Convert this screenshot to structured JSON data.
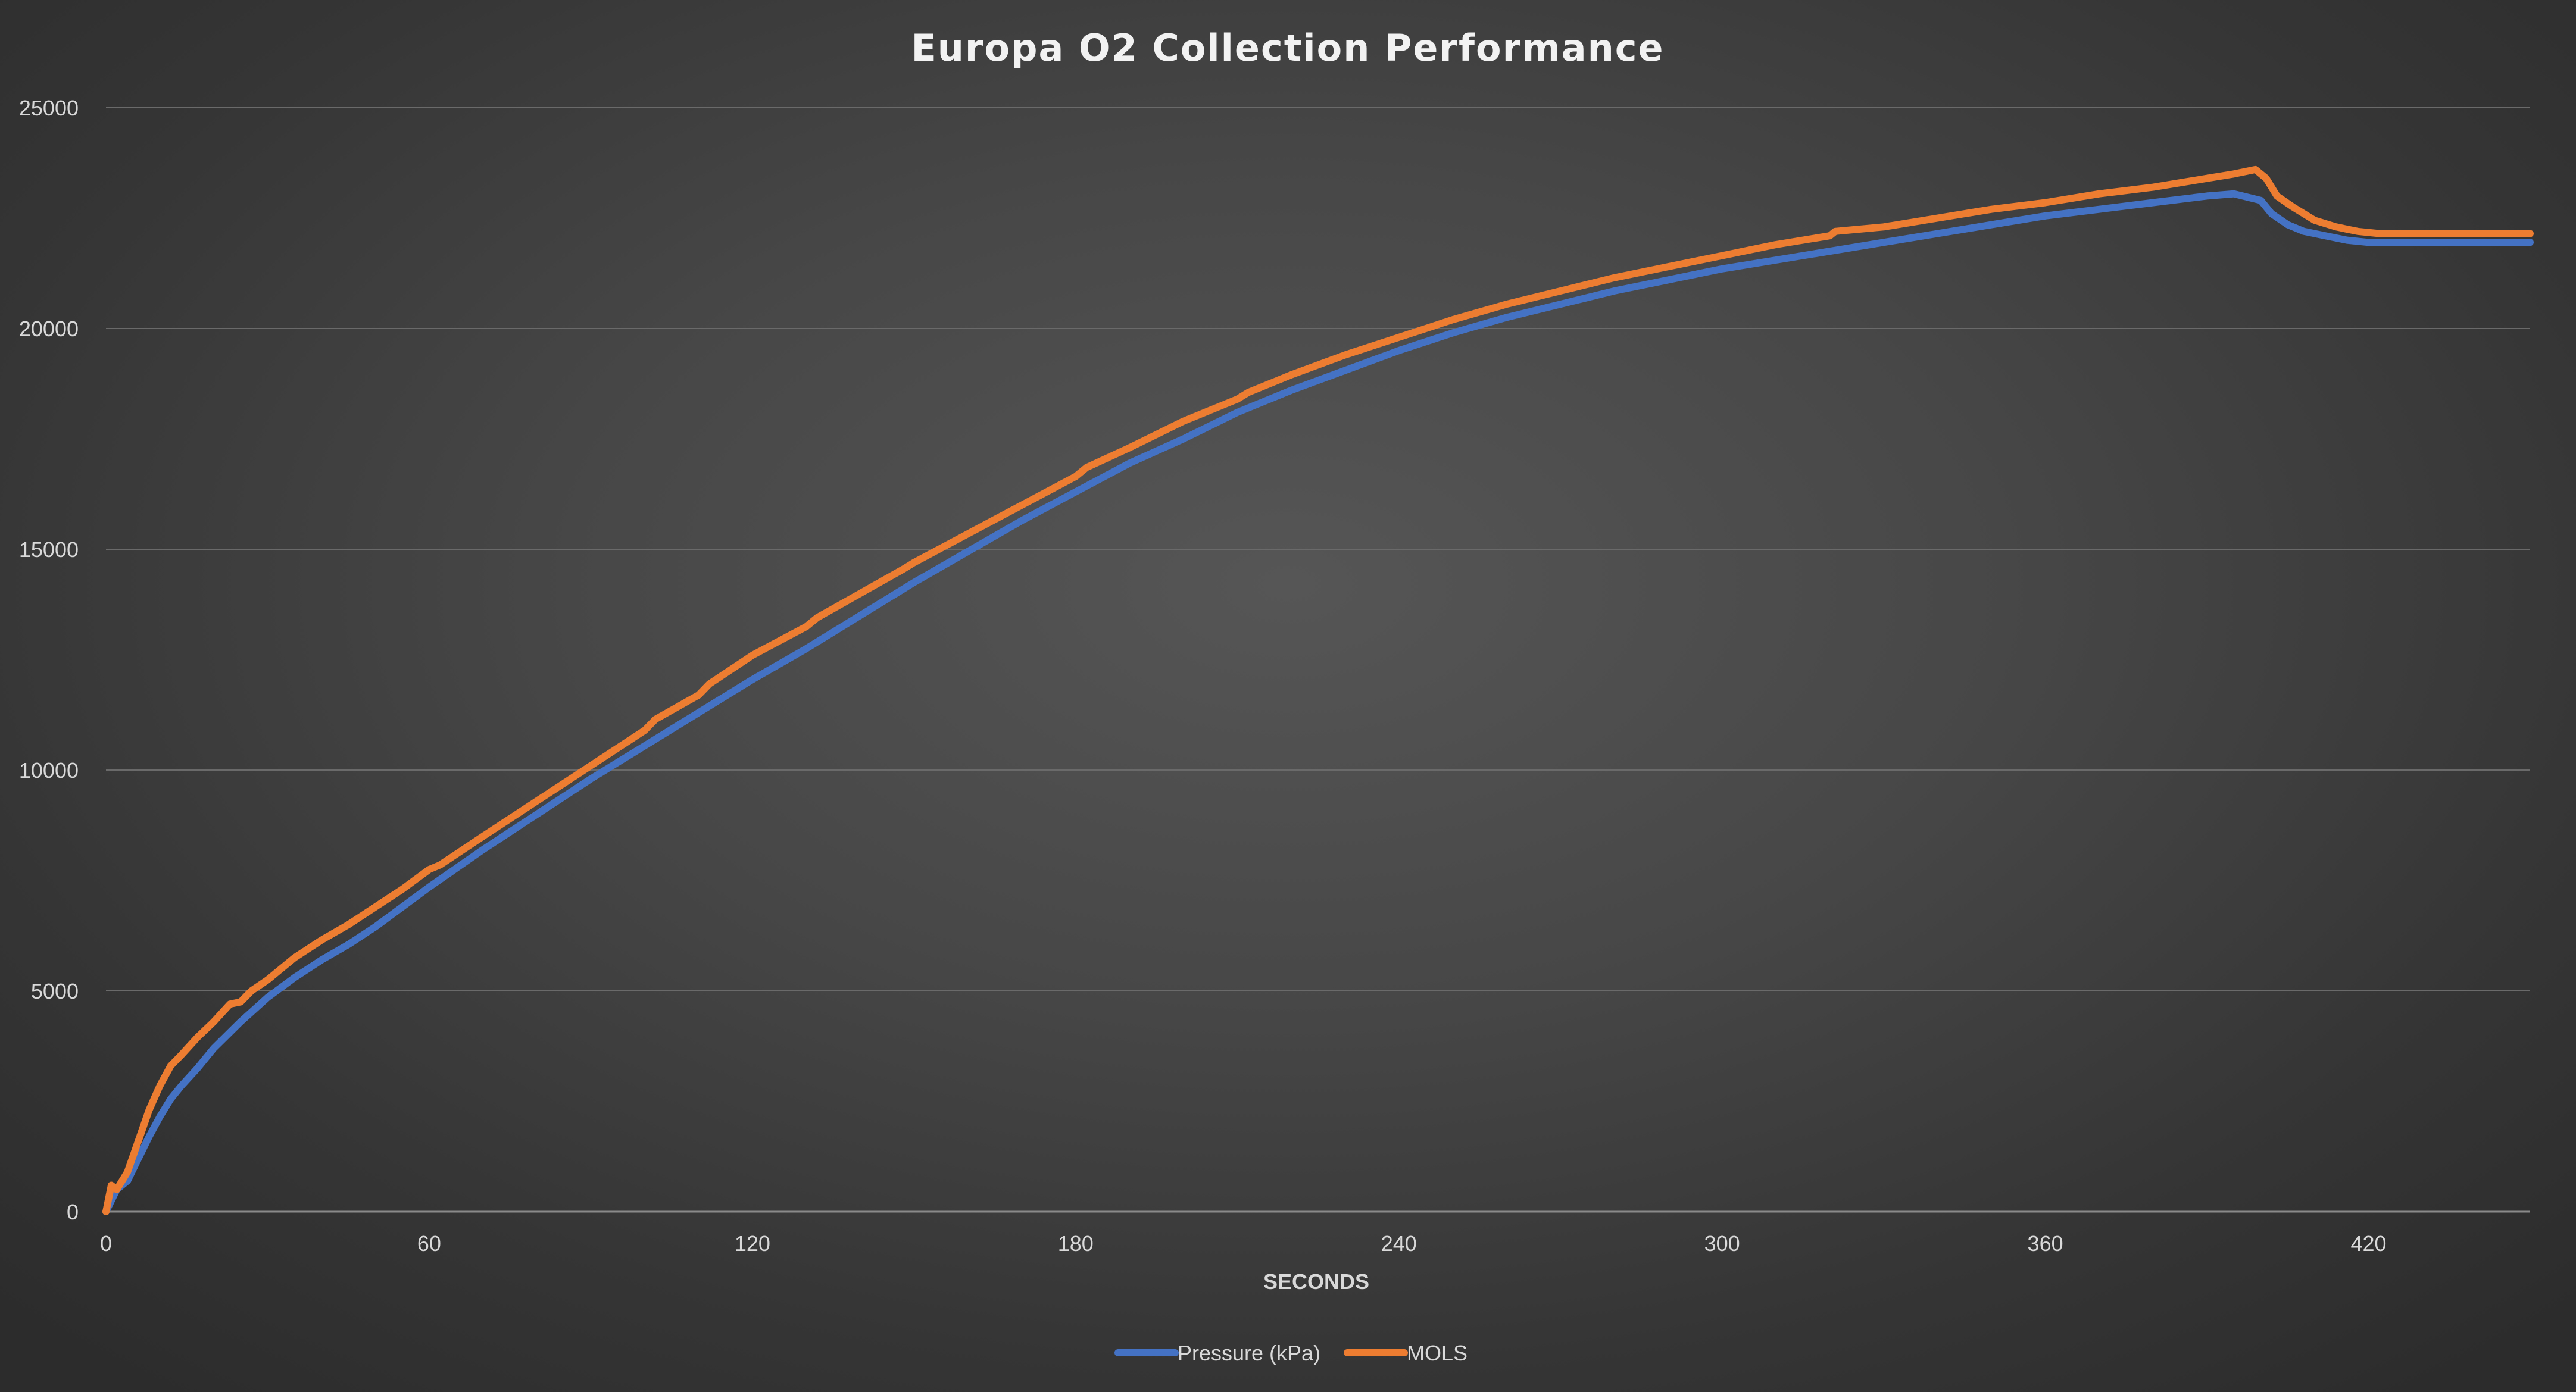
{
  "chart_data": {
    "type": "line",
    "title": "Europa O2 Collection Performance",
    "xlabel": "SECONDS",
    "ylabel": "",
    "xlim": [
      0,
      450
    ],
    "ylim": [
      0,
      25000
    ],
    "x_ticks": [
      0,
      60,
      120,
      180,
      240,
      300,
      360,
      420
    ],
    "y_ticks": [
      0,
      5000,
      10000,
      15000,
      20000,
      25000
    ],
    "x_tick_labels": [
      "0",
      "60",
      "120",
      "180",
      "240",
      "300",
      "360",
      "420"
    ],
    "y_tick_labels": [
      "0",
      "5000",
      "10000",
      "15000",
      "20000",
      "25000"
    ],
    "grid": "horizontal",
    "legend_position": "bottom-center",
    "series": [
      {
        "name": "Pressure (kPa)",
        "color": "#4472c4",
        "x": [
          0,
          2,
          4,
          6,
          8,
          10,
          12,
          14,
          17,
          20,
          25,
          30,
          35,
          40,
          45,
          50,
          60,
          70,
          80,
          90,
          100,
          110,
          120,
          130,
          140,
          150,
          160,
          170,
          180,
          190,
          200,
          210,
          220,
          230,
          240,
          250,
          260,
          270,
          280,
          290,
          300,
          310,
          320,
          330,
          340,
          350,
          360,
          370,
          380,
          390,
          395,
          400,
          402,
          405,
          408,
          412,
          416,
          420,
          430,
          440,
          450
        ],
        "y": [
          0,
          500,
          700,
          1200,
          1700,
          2150,
          2550,
          2850,
          3250,
          3700,
          4300,
          4850,
          5300,
          5700,
          6050,
          6450,
          7350,
          8200,
          9000,
          9800,
          10550,
          11300,
          12050,
          12750,
          13500,
          14250,
          14950,
          15650,
          16300,
          16950,
          17500,
          18100,
          18600,
          19050,
          19500,
          19900,
          20250,
          20550,
          20850,
          21100,
          21350,
          21550,
          21750,
          21950,
          22150,
          22350,
          22550,
          22700,
          22850,
          23000,
          23050,
          22900,
          22600,
          22350,
          22200,
          22100,
          22000,
          21950,
          21950,
          21950,
          21950
        ]
      },
      {
        "name": "MOLS",
        "color": "#ed7d31",
        "x": [
          0,
          1,
          2,
          3,
          4,
          6,
          8,
          10,
          12,
          14,
          17,
          20,
          23,
          25,
          27,
          30,
          35,
          40,
          45,
          50,
          55,
          60,
          62,
          70,
          80,
          90,
          100,
          102,
          110,
          112,
          120,
          130,
          132,
          140,
          148,
          150,
          160,
          170,
          180,
          182,
          190,
          200,
          210,
          212,
          220,
          230,
          240,
          250,
          260,
          270,
          280,
          290,
          300,
          310,
          320,
          321,
          330,
          340,
          350,
          360,
          370,
          380,
          390,
          395,
          399,
          401,
          403,
          406,
          410,
          414,
          418,
          422,
          430,
          440,
          450
        ],
        "y": [
          0,
          600,
          500,
          700,
          900,
          1600,
          2300,
          2850,
          3300,
          3550,
          3950,
          4300,
          4700,
          4750,
          5000,
          5250,
          5750,
          6150,
          6500,
          6900,
          7300,
          7750,
          7850,
          8500,
          9300,
          10100,
          10900,
          11150,
          11700,
          11950,
          12600,
          13250,
          13450,
          14000,
          14550,
          14700,
          15350,
          16000,
          16650,
          16850,
          17300,
          17900,
          18400,
          18550,
          18950,
          19400,
          19800,
          20200,
          20550,
          20850,
          21150,
          21400,
          21650,
          21900,
          22100,
          22200,
          22300,
          22500,
          22700,
          22850,
          23050,
          23200,
          23400,
          23500,
          23600,
          23400,
          23000,
          22750,
          22450,
          22300,
          22200,
          22150,
          22150,
          22150,
          22150
        ]
      }
    ]
  }
}
